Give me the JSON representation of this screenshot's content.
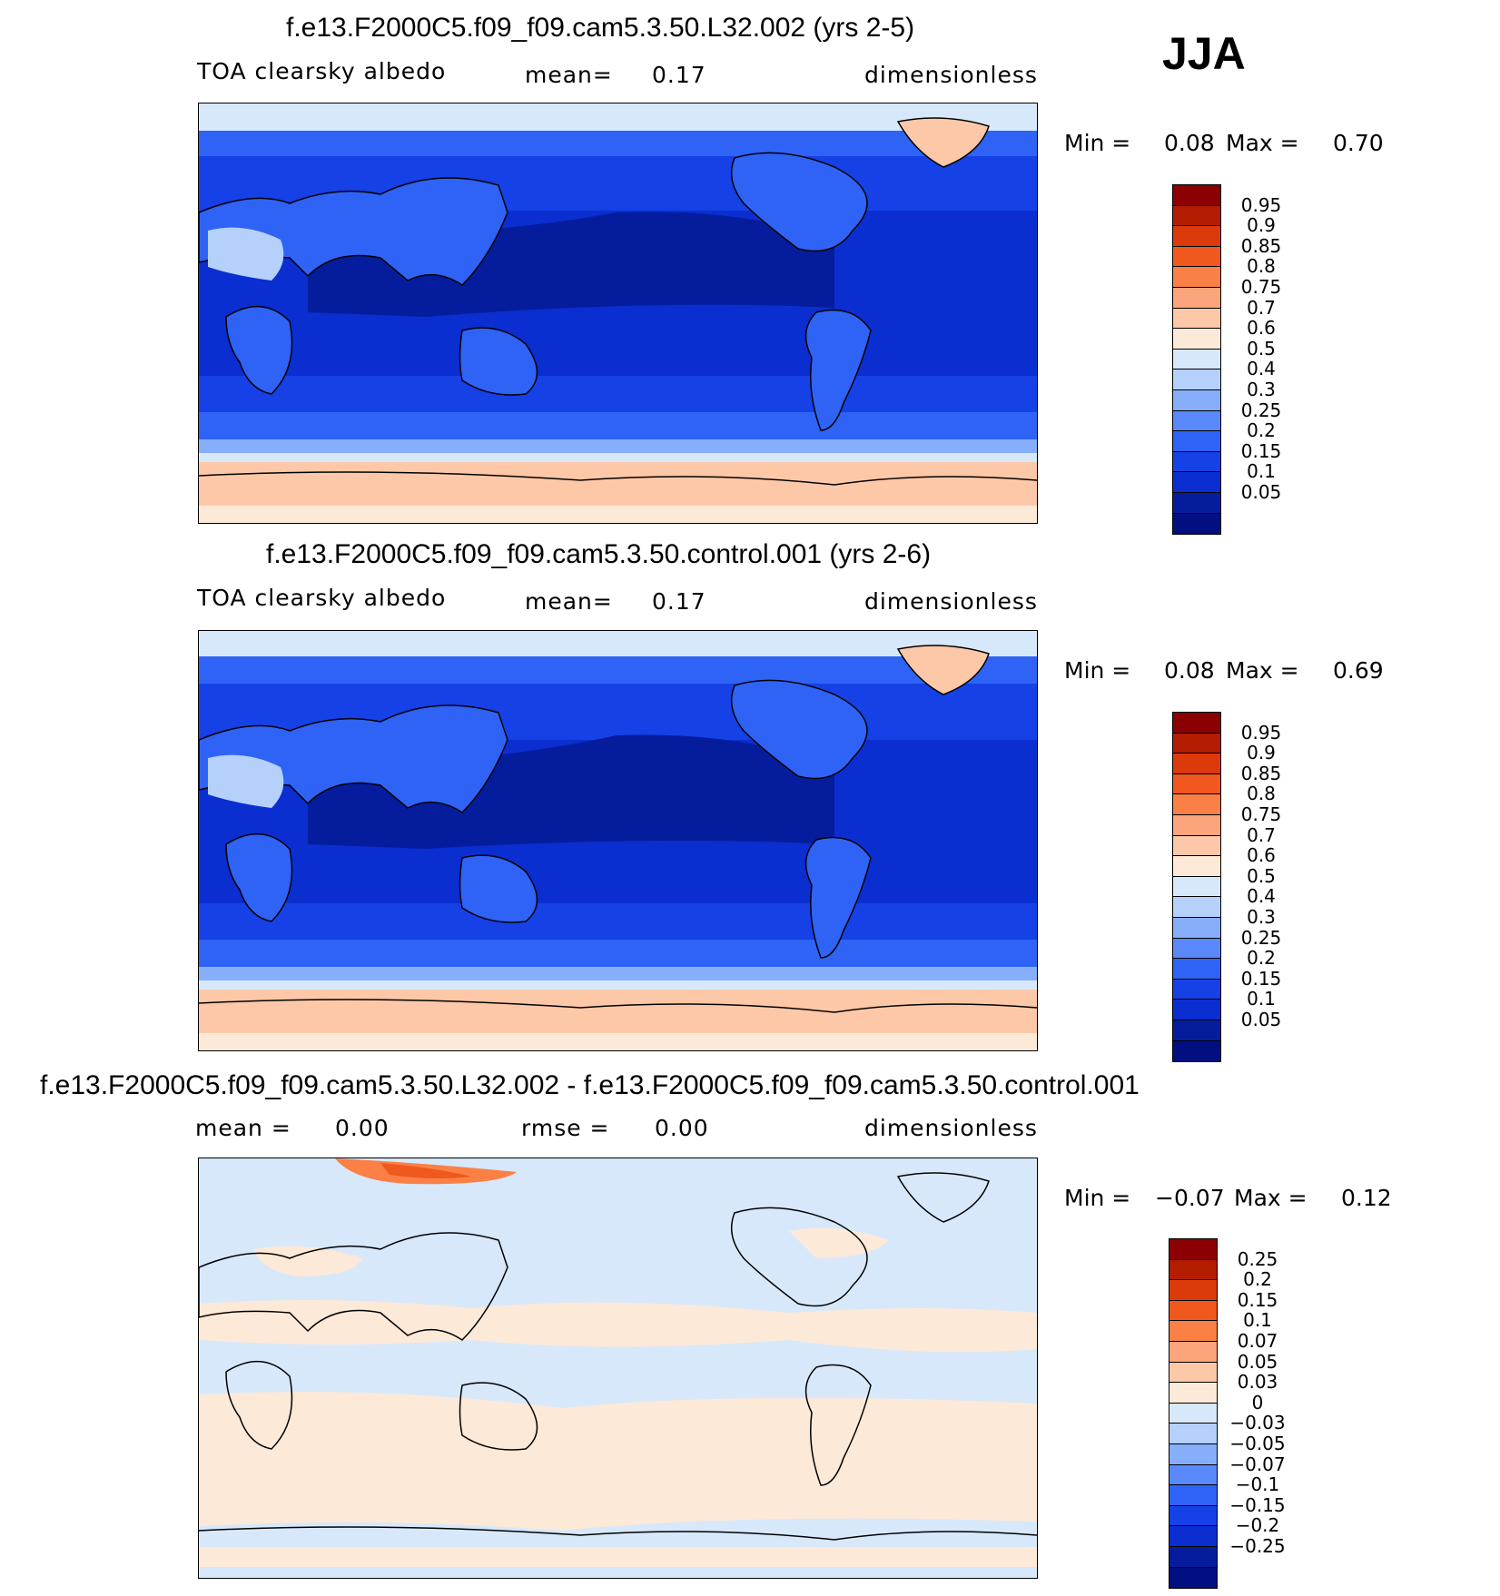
{
  "season": "JJA",
  "panels": [
    {
      "title": "f.e13.F2000C5.f09_f09.cam5.3.50.L32.002 (yrs 2-5)",
      "left_label": "TOA clearsky albedo",
      "mid_label": "mean=",
      "mid_value": "0.17",
      "units": "dimensionless",
      "min_label": "Min =",
      "min_value": "0.08",
      "max_label": "Max =",
      "max_value": "0.70",
      "levels": [
        "0.95",
        "0.9",
        "0.85",
        "0.8",
        "0.75",
        "0.7",
        "0.6",
        "0.5",
        "0.4",
        "0.3",
        "0.25",
        "0.2",
        "0.15",
        "0.1",
        "0.05"
      ],
      "colors": [
        "#8b0000",
        "#b41c00",
        "#dc3a0a",
        "#f0581e",
        "#fb8046",
        "#fca47c",
        "#fdc8a8",
        "#fde9d8",
        "#d7e8fb",
        "#b4d0fb",
        "#86aefb",
        "#5a89fb",
        "#2f63f5",
        "#1541e6",
        "#0a2ed0",
        "#051d9d",
        "#020f80"
      ]
    },
    {
      "title": "f.e13.F2000C5.f09_f09.cam5.3.50.control.001 (yrs 2-6)",
      "left_label": "TOA clearsky albedo",
      "mid_label": "mean=",
      "mid_value": "0.17",
      "units": "dimensionless",
      "min_label": "Min =",
      "min_value": "0.08",
      "max_label": "Max =",
      "max_value": "0.69",
      "levels": [
        "0.95",
        "0.9",
        "0.85",
        "0.8",
        "0.75",
        "0.7",
        "0.6",
        "0.5",
        "0.4",
        "0.3",
        "0.25",
        "0.2",
        "0.15",
        "0.1",
        "0.05"
      ],
      "colors": [
        "#8b0000",
        "#b41c00",
        "#dc3a0a",
        "#f0581e",
        "#fb8046",
        "#fca47c",
        "#fdc8a8",
        "#fde9d8",
        "#d7e8fb",
        "#b4d0fb",
        "#86aefb",
        "#5a89fb",
        "#2f63f5",
        "#1541e6",
        "#0a2ed0",
        "#051d9d",
        "#020f80"
      ]
    },
    {
      "title": "f.e13.F2000C5.f09_f09.cam5.3.50.L32.002 - f.e13.F2000C5.f09_f09.cam5.3.50.control.001",
      "left_label": "mean =",
      "left_value": "0.00",
      "mid_label": "rmse =",
      "mid_value": "0.00",
      "units": "dimensionless",
      "min_label": "Min =",
      "min_value": "−0.07",
      "max_label": "Max =",
      "max_value": "0.12",
      "levels": [
        "0.25",
        "0.2",
        "0.15",
        "0.1",
        "0.07",
        "0.05",
        "0.03",
        "0",
        "−0.03",
        "−0.05",
        "−0.07",
        "−0.1",
        "−0.15",
        "−0.2",
        "−0.25"
      ],
      "colors": [
        "#8b0000",
        "#b41c00",
        "#dc3a0a",
        "#f0581e",
        "#fb8046",
        "#fca47c",
        "#fdc8a8",
        "#fde9d8",
        "#d7e8fb",
        "#b4d0fb",
        "#86aefb",
        "#5a89fb",
        "#2f63f5",
        "#1541e6",
        "#0a2ed0",
        "#051d9d",
        "#020f80"
      ]
    }
  ]
}
